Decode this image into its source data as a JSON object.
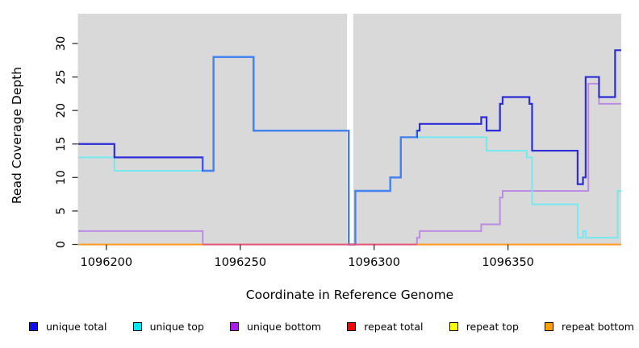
{
  "chart_data": {
    "type": "line",
    "step": true,
    "xlabel": "Coordinate in Reference Genome",
    "ylabel": "Read Coverage Depth",
    "xlim": [
      1096189.5,
      1096392.3
    ],
    "ylim": [
      0,
      30
    ],
    "x_ticks": [
      1096200,
      1096250,
      1096300,
      1096350
    ],
    "y_ticks": [
      0,
      5,
      10,
      15,
      20,
      25,
      30
    ],
    "panel_bg": "#d9d9d9",
    "grid": false,
    "legend_position": "bottom",
    "gap_region": {
      "x_start": 1096289.9,
      "x_end": 1096292.2,
      "color": "#ffffff"
    },
    "series": [
      {
        "name": "unique total",
        "legend_color": "#0b0bff",
        "line_color": "#2d2dd8",
        "color_when_equal_top": "#4083f2",
        "points": [
          [
            1096190,
            15
          ],
          [
            1096203,
            13
          ],
          [
            1096236,
            11
          ],
          [
            1096240,
            28
          ],
          [
            1096255,
            17
          ],
          [
            1096290.5,
            0
          ],
          [
            1096293,
            8
          ],
          [
            1096306,
            10
          ],
          [
            1096310,
            16
          ],
          [
            1096316,
            17
          ],
          [
            1096317,
            18
          ],
          [
            1096340,
            19
          ],
          [
            1096342,
            17
          ],
          [
            1096347,
            21
          ],
          [
            1096348,
            22
          ],
          [
            1096358,
            21
          ],
          [
            1096359,
            14
          ],
          [
            1096376,
            9
          ],
          [
            1096378,
            10
          ],
          [
            1096379,
            25
          ],
          [
            1096384,
            22
          ],
          [
            1096390,
            29
          ]
        ]
      },
      {
        "name": "unique top",
        "legend_color": "#00e8f0",
        "line_color": "#74e9ef",
        "points": [
          [
            1096190,
            13
          ],
          [
            1096203,
            11
          ],
          [
            1096240,
            28
          ],
          [
            1096255,
            17
          ],
          [
            1096290.5,
            0
          ],
          [
            1096293,
            8
          ],
          [
            1096306,
            10
          ],
          [
            1096310,
            16
          ],
          [
            1096342,
            14
          ],
          [
            1096357,
            13
          ],
          [
            1096359,
            6
          ],
          [
            1096376,
            1
          ],
          [
            1096378,
            2
          ],
          [
            1096379,
            1
          ],
          [
            1096391,
            8
          ]
        ]
      },
      {
        "name": "unique bottom",
        "legend_color": "#a81ee8",
        "line_color": "#bb8ce2",
        "points": [
          [
            1096190,
            2
          ],
          [
            1096236,
            0
          ],
          [
            1096316,
            1
          ],
          [
            1096317,
            2
          ],
          [
            1096340,
            3
          ],
          [
            1096347,
            7
          ],
          [
            1096348,
            8
          ],
          [
            1096380,
            24
          ],
          [
            1096384,
            21
          ]
        ]
      },
      {
        "name": "repeat total",
        "legend_color": "#ff0000",
        "line_color": "#e25677",
        "points": [
          [
            1096190,
            0
          ]
        ]
      },
      {
        "name": "repeat top",
        "legend_color": "#ffff00",
        "line_color": "#f5f04a",
        "points": [
          [
            1096190,
            0
          ]
        ]
      },
      {
        "name": "repeat bottom",
        "legend_color": "#ffa200",
        "line_color": "#ff9d1e",
        "points": [
          [
            1096190,
            0
          ]
        ]
      }
    ]
  }
}
